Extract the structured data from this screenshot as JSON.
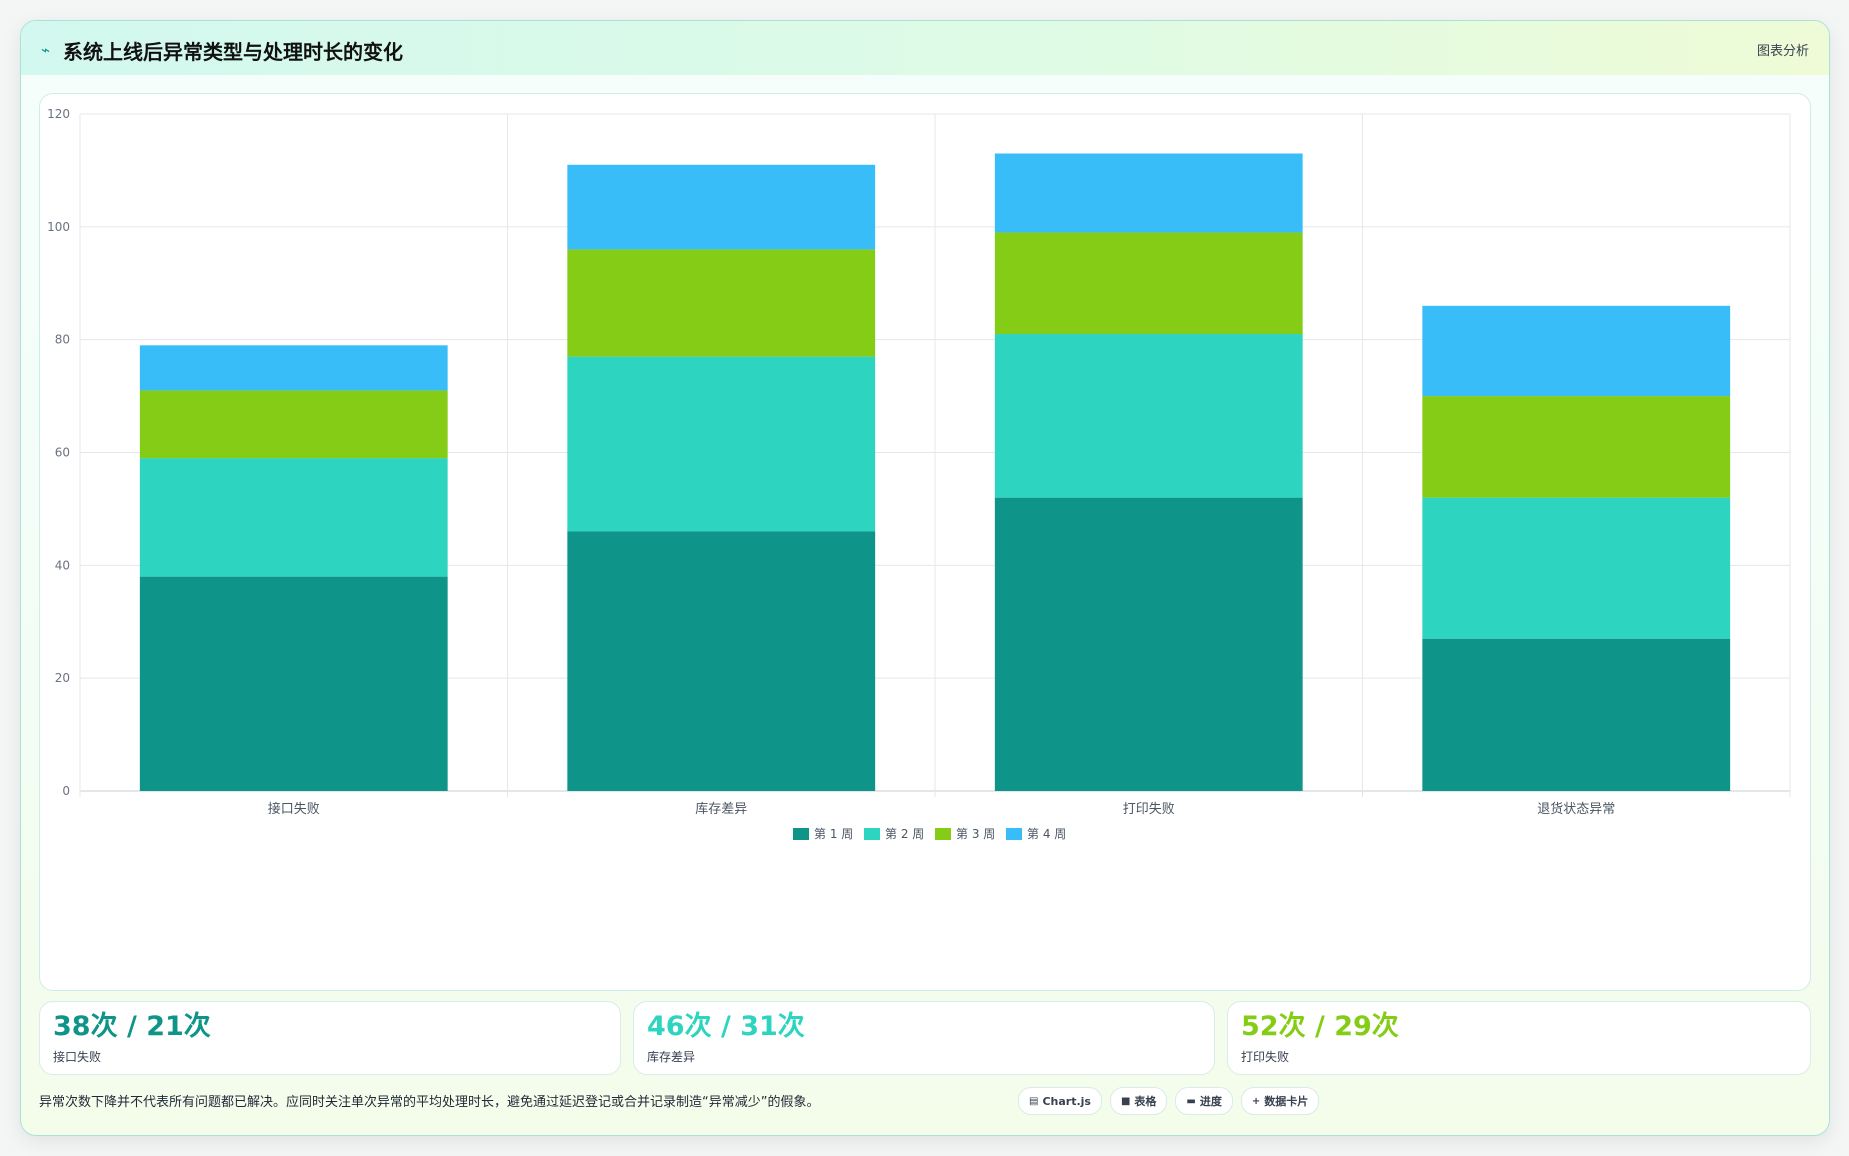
{
  "header": {
    "icon": "trend-line-icon",
    "title": "系统上线后异常类型与处理时长的变化",
    "tag": "图表分析"
  },
  "chart_data": {
    "type": "bar",
    "stacked": true,
    "categories": [
      "接口失败",
      "库存差异",
      "打印失败",
      "退货状态异常"
    ],
    "series": [
      {
        "name": "第 1 周",
        "color": "#0e9488",
        "values": [
          38,
          46,
          52,
          27
        ]
      },
      {
        "name": "第 2 周",
        "color": "#2dd4bf",
        "values": [
          21,
          31,
          29,
          25
        ]
      },
      {
        "name": "第 3 周",
        "color": "#84cc16",
        "values": [
          12,
          19,
          18,
          18
        ]
      },
      {
        "name": "第 4 周",
        "color": "#38bdf8",
        "values": [
          8,
          15,
          14,
          16
        ]
      }
    ],
    "ylim": [
      0,
      120
    ],
    "yticks": [
      0,
      20,
      40,
      60,
      80,
      100,
      120
    ],
    "grid": true,
    "legend": "bottom"
  },
  "stats": [
    {
      "value": "38次 / 21次",
      "label": "接口失败",
      "color": "#0e9488"
    },
    {
      "value": "46次 / 31次",
      "label": "库存差异",
      "color": "#2dd4bf"
    },
    {
      "value": "52次 / 29次",
      "label": "打印失败",
      "color": "#84cc16"
    }
  ],
  "footnote": "异常次数下降并不代表所有问题都已解决。应同时关注单次异常的平均处理时长，避免通过延迟登记或合并记录制造“异常减少”的假象。",
  "pills": [
    {
      "glyph": "▤",
      "icon": "chart-icon",
      "label": "Chart.js"
    },
    {
      "glyph": "■",
      "icon": "table-icon",
      "label": "表格"
    },
    {
      "glyph": "▬",
      "icon": "progress-icon",
      "label": "进度"
    },
    {
      "glyph": "+",
      "icon": "card-icon",
      "label": "数据卡片"
    }
  ]
}
